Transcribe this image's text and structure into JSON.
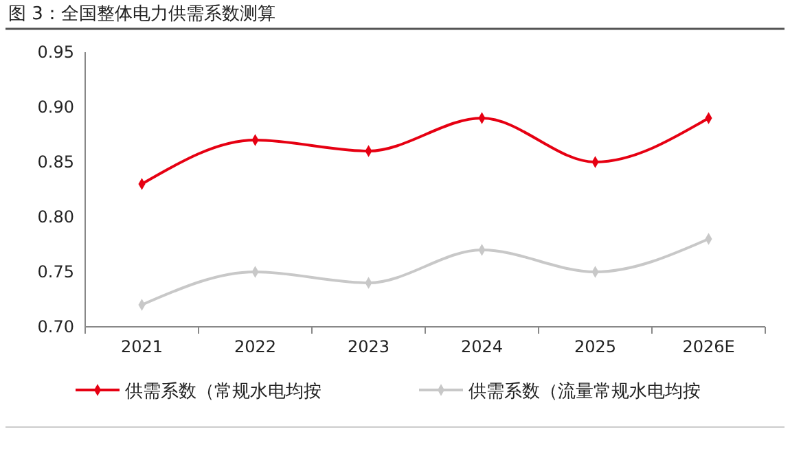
{
  "chart_data": {
    "type": "line",
    "title": "图 3：全国整体电力供需系数测算",
    "categories": [
      "2021",
      "2022",
      "2023",
      "2024",
      "2025",
      "2026E"
    ],
    "series": [
      {
        "name": "供需系数（常规水电均按",
        "color": "#e60012",
        "values": [
          0.83,
          0.87,
          0.86,
          0.89,
          0.85,
          0.89
        ]
      },
      {
        "name": "供需系数（流量常规水电均按",
        "color": "#c8c8c8",
        "values": [
          0.72,
          0.75,
          0.74,
          0.77,
          0.75,
          0.78
        ]
      }
    ],
    "ylim": [
      0.7,
      0.95
    ],
    "yticks": [
      {
        "value": 0.7,
        "label": "0.70"
      },
      {
        "value": 0.75,
        "label": "0.75"
      },
      {
        "value": 0.8,
        "label": "0.80"
      },
      {
        "value": 0.85,
        "label": "0.85"
      },
      {
        "value": 0.9,
        "label": "0.90"
      },
      {
        "value": 0.95,
        "label": "0.95"
      }
    ],
    "marker": "diamond",
    "legend": "bottom",
    "grid": false
  }
}
